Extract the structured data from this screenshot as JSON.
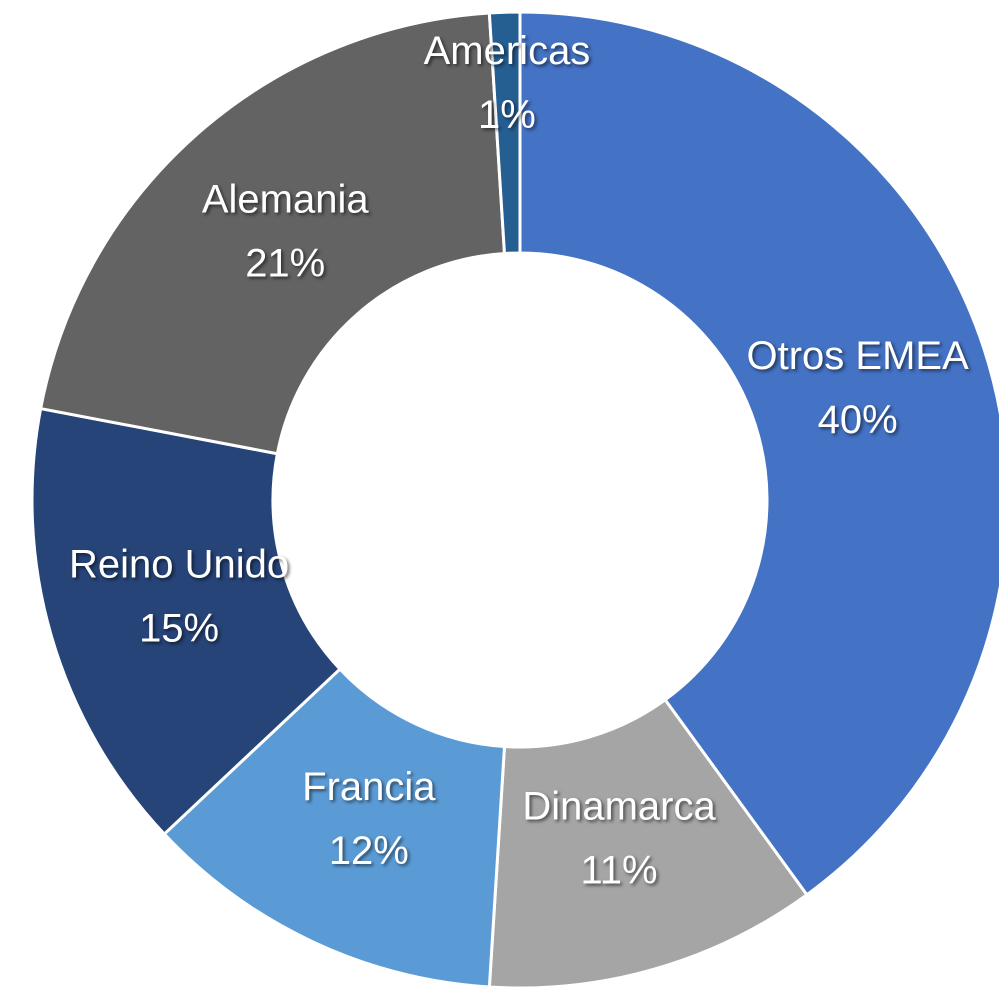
{
  "chart_data": {
    "type": "pie",
    "categories": [
      "Otros EMEA",
      "Dinamarca",
      "Francia",
      "Reino Unido",
      "Alemania",
      "Americas"
    ],
    "values": [
      40,
      11,
      12,
      15,
      21,
      1
    ],
    "value_labels": [
      "40%",
      "11%",
      "12%",
      "15%",
      "21%",
      "1%"
    ],
    "colors": [
      "#4472c4",
      "#a5a5a5",
      "#5b9bd5",
      "#264478",
      "#636363",
      "#255e91"
    ],
    "donut": true
  }
}
